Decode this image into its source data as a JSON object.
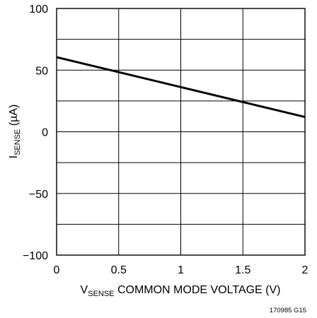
{
  "chart_data": {
    "type": "line",
    "title": "",
    "xlabel": {
      "prefix": "V",
      "subscript": "SENSE",
      "suffix": " COMMON MODE VOLTAGE (V)"
    },
    "ylabel": {
      "prefix": "I",
      "subscript": "SENSE",
      "suffix": " (µA)"
    },
    "xlim": [
      0,
      2
    ],
    "ylim": [
      -100,
      100
    ],
    "x_ticks": [
      0,
      0.5,
      1,
      1.5,
      2
    ],
    "x_tick_labels": [
      "0",
      "0.5",
      "1",
      "1.5",
      "2"
    ],
    "y_ticks": [
      -100,
      -50,
      0,
      50,
      100
    ],
    "y_tick_labels": [
      "−100",
      "−50",
      "0",
      "50",
      "100"
    ],
    "x_grid": [
      0,
      0.5,
      1,
      1.5,
      2
    ],
    "y_grid": [
      -100,
      -75,
      -50,
      -25,
      0,
      25,
      50,
      75,
      100
    ],
    "grid": true,
    "series": [
      {
        "color": "#000000",
        "x": [
          0,
          2
        ],
        "y": [
          60.5,
          12
        ]
      }
    ]
  },
  "figure_id": "170985 G15"
}
